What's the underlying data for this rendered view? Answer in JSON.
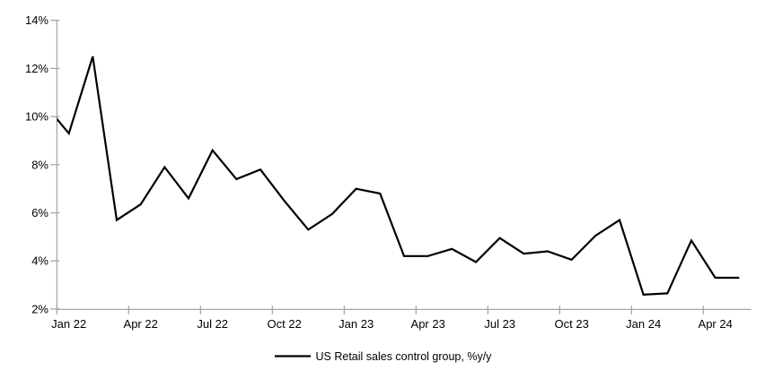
{
  "chart_data": {
    "type": "line",
    "title": "",
    "series": [
      {
        "name": "US Retail sales control group, %y/y",
        "color": "#000000",
        "x": [
          "Dec 21",
          "Jan 22",
          "Feb 22",
          "Mar 22",
          "Apr 22",
          "May 22",
          "Jun 22",
          "Jul 22",
          "Aug 22",
          "Sep 22",
          "Oct 22",
          "Nov 22",
          "Dec 22",
          "Jan 23",
          "Feb 23",
          "Mar 23",
          "Apr 23",
          "May 23",
          "Jun 23",
          "Jul 23",
          "Aug 23",
          "Sep 23",
          "Oct 23",
          "Nov 23",
          "Dec 23",
          "Jan 24",
          "Feb 24",
          "Mar 24",
          "Apr 24",
          "May 24"
        ],
        "values": [
          10.5,
          9.3,
          12.5,
          5.7,
          6.35,
          7.9,
          6.6,
          8.6,
          7.4,
          7.8,
          6.5,
          5.3,
          5.95,
          7.0,
          6.8,
          4.2,
          4.2,
          4.5,
          3.95,
          4.95,
          4.3,
          4.4,
          4.05,
          5.05,
          5.7,
          2.6,
          2.65,
          4.85,
          3.3,
          3.3
        ]
      }
    ],
    "x_tick_labels": [
      "Jan 22",
      "Apr 22",
      "Jul 22",
      "Oct 22",
      "Jan 23",
      "Apr 23",
      "Jul 23",
      "Oct 23",
      "Jan 24",
      "Apr 24"
    ],
    "y_tick_labels": [
      "14%",
      "12%",
      "10%",
      "8%",
      "6%",
      "4%",
      "2%"
    ],
    "y_tick_values": [
      14,
      12,
      10,
      8,
      6,
      4,
      2
    ],
    "ylim": [
      2,
      14
    ],
    "y_unit": "%",
    "grid": "off",
    "legend_position": "bottom-center",
    "axis_color": "#a6a6a6",
    "text_color": "#000000",
    "background_color": "#ffffff"
  }
}
